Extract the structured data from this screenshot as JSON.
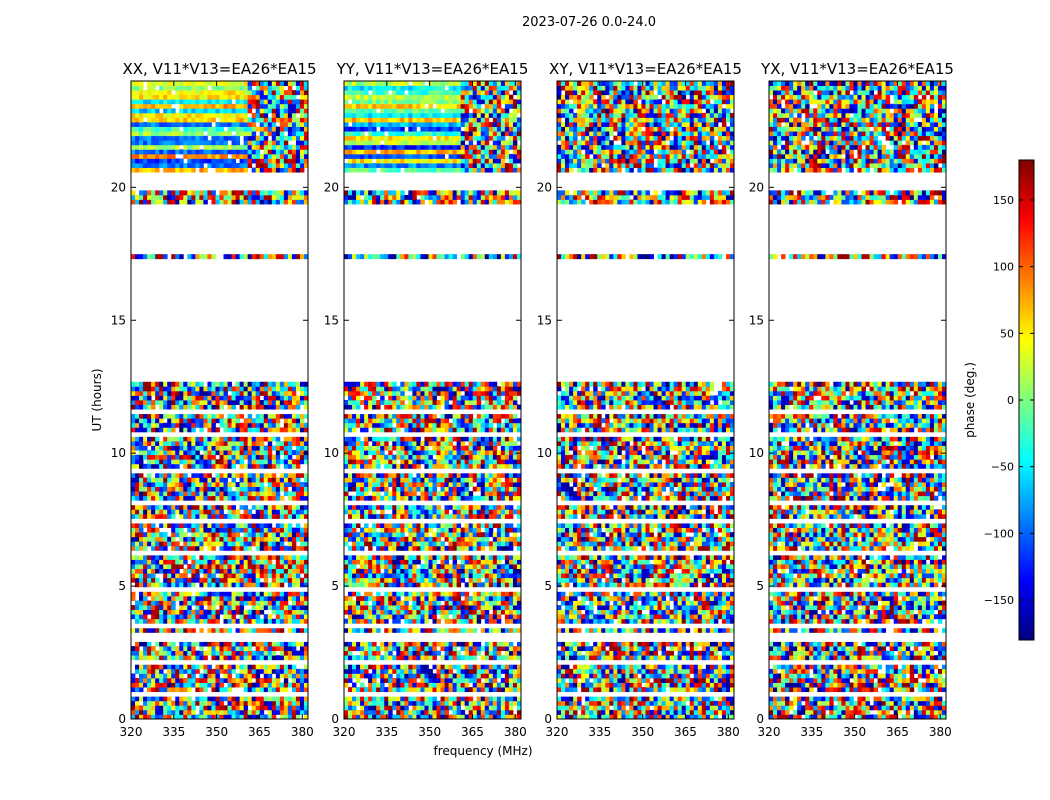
{
  "chart_data": {
    "type": "heatmap",
    "title": "2023-07-26 0.0-24.0",
    "xlabel": "frequency (MHz)",
    "ylabel": "UT (hours)",
    "xlim": [
      320,
      382
    ],
    "ylim": [
      0,
      24
    ],
    "x_ticks": [
      320,
      335,
      350,
      365,
      380
    ],
    "y_ticks": [
      0,
      5,
      10,
      15,
      20
    ],
    "panels": [
      {
        "title": "XX, V11*V13=EA26*EA15",
        "mode": "parallel"
      },
      {
        "title": "YY, V11*V13=EA26*EA15",
        "mode": "parallel"
      },
      {
        "title": "XY, V11*V13=EA26*EA15",
        "mode": "cross"
      },
      {
        "title": "YX, V11*V13=EA26*EA15",
        "mode": "cross"
      }
    ],
    "colorbar": {
      "label": "phase (deg.)",
      "range": [
        -180,
        180
      ],
      "ticks": [
        150,
        100,
        50,
        0,
        -50,
        -100,
        -150
      ],
      "tick_labels": [
        "150",
        "100",
        "50",
        "0",
        "−50",
        "−100",
        "−150"
      ],
      "colormap": [
        "#00007f",
        "#0000ff",
        "#007fff",
        "#00ffff",
        "#7fff7f",
        "#ffff00",
        "#ff7f00",
        "#ff0000",
        "#7f0000"
      ]
    },
    "data_gaps_hours": [
      [
        12.75,
        17.25
      ],
      [
        17.55,
        19.45
      ],
      [
        19.95,
        20.55
      ]
    ],
    "flagged_line_hours": [
      1.0,
      2.1,
      3.0,
      3.2,
      3.5,
      4.9,
      6.2,
      7.4,
      8.1,
      9.3,
      10.7,
      11.6
    ]
  }
}
